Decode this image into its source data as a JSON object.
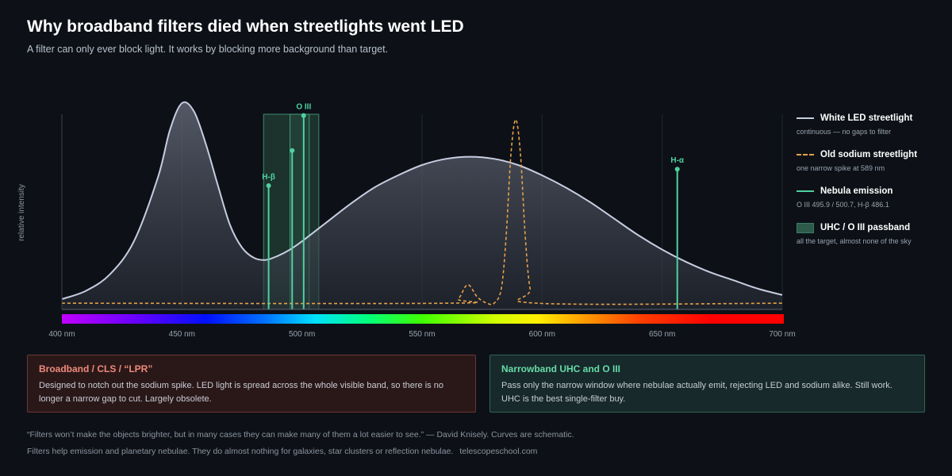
{
  "header": {
    "title": "Why broadband filters died when streetlights went LED",
    "subtitle": "A filter can only ever block light. It works by blocking more background than target."
  },
  "chart_data": {
    "type": "line",
    "ylabel": "relative intensity",
    "xlim": [
      400,
      700
    ],
    "ylim": [
      0,
      1
    ],
    "x_ticks": [
      {
        "value": 400,
        "label": "400 nm"
      },
      {
        "value": 450,
        "label": "450 nm"
      },
      {
        "value": 500,
        "label": "500 nm"
      },
      {
        "value": 550,
        "label": "550 nm"
      },
      {
        "value": 600,
        "label": "600 nm"
      },
      {
        "value": 650,
        "label": "650 nm"
      },
      {
        "value": 700,
        "label": "700 nm"
      }
    ],
    "grid": true,
    "led_curve": {
      "x": [
        400,
        410,
        420,
        430,
        440,
        445,
        450,
        455,
        460,
        465,
        470,
        475,
        480,
        485,
        490,
        495,
        500,
        510,
        520,
        530,
        540,
        550,
        560,
        570,
        580,
        590,
        600,
        610,
        620,
        630,
        640,
        650,
        660,
        670,
        680,
        690,
        700
      ],
      "y": [
        0.05,
        0.09,
        0.17,
        0.33,
        0.64,
        0.87,
        1.0,
        0.96,
        0.8,
        0.6,
        0.41,
        0.3,
        0.25,
        0.24,
        0.26,
        0.29,
        0.33,
        0.42,
        0.51,
        0.59,
        0.65,
        0.7,
        0.73,
        0.74,
        0.73,
        0.7,
        0.65,
        0.59,
        0.52,
        0.44,
        0.36,
        0.29,
        0.23,
        0.18,
        0.14,
        0.1,
        0.07
      ]
    },
    "sodium_curve": {
      "x": [
        400,
        560,
        565,
        569,
        573,
        577,
        580,
        583,
        585,
        587,
        589,
        591,
        593,
        595,
        598,
        700
      ],
      "y": [
        0.03,
        0.03,
        0.05,
        0.12,
        0.06,
        0.03,
        0.03,
        0.1,
        0.35,
        0.75,
        0.92,
        0.75,
        0.35,
        0.1,
        0.03,
        0.03
      ]
    },
    "nebula_lines": [
      {
        "x": 486.1,
        "y": 0.6,
        "label": "H-β"
      },
      {
        "x": 495.9,
        "y": 0.77,
        "label": ""
      },
      {
        "x": 500.7,
        "y": 0.94,
        "label": "O III"
      },
      {
        "x": 656.3,
        "y": 0.68,
        "label": "H-α"
      }
    ],
    "passband_outer": [
      484,
      507
    ],
    "passband_inner": [
      495,
      503
    ],
    "legend": {
      "placement": "right",
      "items": [
        {
          "label": "White LED streetlight",
          "sub": "continuous — no gaps to filter"
        },
        {
          "label": "Old sodium streetlight",
          "sub": "one narrow spike at 589 nm"
        },
        {
          "label": "Nebula emission",
          "sub": "O III 495.9 / 500.7, H-β 486.1"
        },
        {
          "label": "UHC / O III passband",
          "sub": "all the target, almost none of the sky"
        }
      ]
    }
  },
  "cards": {
    "broadband": {
      "title": "Broadband / CLS / “LPR”",
      "body": "Designed to notch out the sodium spike. LED light is spread across the whole visible band, so there is no longer a narrow gap to cut. Largely obsolete."
    },
    "narrowband": {
      "title": "Narrowband UHC and O III",
      "body": "Pass only the narrow window where nebulae actually emit, rejecting LED and sodium alike. Still work. UHC is the best single-filter buy."
    }
  },
  "footer": {
    "quote": "“Filters won’t make the objects brighter, but in many cases they can make many of them a lot easier to see.” — David Knisely.  Curves are schematic.",
    "note": "Filters help emission and planetary nebulae. They do almost nothing for galaxies, star clusters or reflection nebulae.",
    "site": "telescopeschool.com"
  },
  "colors": {
    "led": "#c7cde0",
    "sodium": "#e6a24a",
    "nebula": "#4fd1a0",
    "passband": "#2d5a4a"
  }
}
